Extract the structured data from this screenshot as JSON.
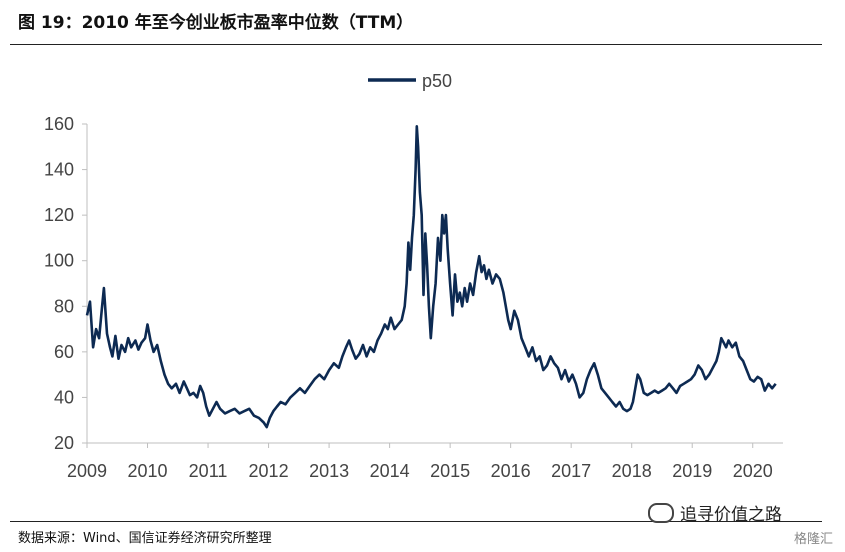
{
  "header": {
    "title": "图 19：2010 年至今创业板市盈率中位数（TTM）"
  },
  "footer": {
    "source": "数据来源：Wind、国信证券经济研究所整理",
    "watermark": "追寻价值之路",
    "logo": "格隆汇"
  },
  "colors": {
    "line": "#0d2a52",
    "axis": "#bfbfbf",
    "text": "#444444"
  },
  "chart_data": {
    "type": "line",
    "legend": {
      "entries": [
        "p50"
      ],
      "placement": "top-center"
    },
    "ylim": [
      20,
      160
    ],
    "yticks": [
      20,
      40,
      60,
      80,
      100,
      120,
      140,
      160
    ],
    "xlim": [
      2009.0,
      2020.5
    ],
    "xticks": [
      "2009",
      "2010",
      "2011",
      "2012",
      "2013",
      "2014",
      "2015",
      "2016",
      "2017",
      "2018",
      "2019",
      "2020"
    ],
    "series": [
      {
        "name": "p50",
        "points": [
          [
            2009.0,
            76
          ],
          [
            2009.05,
            82
          ],
          [
            2009.1,
            62
          ],
          [
            2009.15,
            70
          ],
          [
            2009.2,
            66
          ],
          [
            2009.25,
            80
          ],
          [
            2009.28,
            88
          ],
          [
            2009.33,
            68
          ],
          [
            2009.38,
            62
          ],
          [
            2009.42,
            58
          ],
          [
            2009.47,
            67
          ],
          [
            2009.52,
            57
          ],
          [
            2009.57,
            63
          ],
          [
            2009.63,
            60
          ],
          [
            2009.68,
            66
          ],
          [
            2009.73,
            62
          ],
          [
            2009.8,
            65
          ],
          [
            2009.85,
            61
          ],
          [
            2009.9,
            64
          ],
          [
            2009.96,
            66
          ],
          [
            2010.0,
            72
          ],
          [
            2010.05,
            65
          ],
          [
            2010.1,
            60
          ],
          [
            2010.16,
            63
          ],
          [
            2010.22,
            56
          ],
          [
            2010.28,
            50
          ],
          [
            2010.34,
            46
          ],
          [
            2010.4,
            44
          ],
          [
            2010.47,
            46
          ],
          [
            2010.53,
            42
          ],
          [
            2010.6,
            47
          ],
          [
            2010.65,
            44
          ],
          [
            2010.7,
            41
          ],
          [
            2010.76,
            42
          ],
          [
            2010.82,
            40
          ],
          [
            2010.87,
            45
          ],
          [
            2010.92,
            42
          ],
          [
            2010.97,
            36
          ],
          [
            2011.02,
            32
          ],
          [
            2011.08,
            35
          ],
          [
            2011.14,
            38
          ],
          [
            2011.2,
            35
          ],
          [
            2011.28,
            33
          ],
          [
            2011.36,
            34
          ],
          [
            2011.44,
            35
          ],
          [
            2011.52,
            33
          ],
          [
            2011.6,
            34
          ],
          [
            2011.68,
            35
          ],
          [
            2011.76,
            32
          ],
          [
            2011.84,
            31
          ],
          [
            2011.92,
            29
          ],
          [
            2011.97,
            27
          ],
          [
            2012.02,
            31
          ],
          [
            2012.08,
            34
          ],
          [
            2012.14,
            36
          ],
          [
            2012.2,
            38
          ],
          [
            2012.28,
            37
          ],
          [
            2012.36,
            40
          ],
          [
            2012.44,
            42
          ],
          [
            2012.52,
            44
          ],
          [
            2012.6,
            42
          ],
          [
            2012.68,
            45
          ],
          [
            2012.76,
            48
          ],
          [
            2012.84,
            50
          ],
          [
            2012.92,
            48
          ],
          [
            2013.0,
            52
          ],
          [
            2013.08,
            55
          ],
          [
            2013.16,
            53
          ],
          [
            2013.22,
            58
          ],
          [
            2013.28,
            62
          ],
          [
            2013.33,
            65
          ],
          [
            2013.38,
            61
          ],
          [
            2013.44,
            57
          ],
          [
            2013.5,
            59
          ],
          [
            2013.56,
            63
          ],
          [
            2013.62,
            58
          ],
          [
            2013.68,
            62
          ],
          [
            2013.74,
            60
          ],
          [
            2013.8,
            65
          ],
          [
            2013.86,
            68
          ],
          [
            2013.92,
            72
          ],
          [
            2013.97,
            70
          ],
          [
            2014.02,
            75
          ],
          [
            2014.08,
            70
          ],
          [
            2014.14,
            72
          ],
          [
            2014.2,
            74
          ],
          [
            2014.25,
            80
          ],
          [
            2014.28,
            90
          ],
          [
            2014.31,
            108
          ],
          [
            2014.34,
            96
          ],
          [
            2014.37,
            110
          ],
          [
            2014.4,
            120
          ],
          [
            2014.43,
            140
          ],
          [
            2014.45,
            159
          ],
          [
            2014.47,
            150
          ],
          [
            2014.5,
            130
          ],
          [
            2014.53,
            120
          ],
          [
            2014.56,
            85
          ],
          [
            2014.59,
            112
          ],
          [
            2014.62,
            98
          ],
          [
            2014.65,
            80
          ],
          [
            2014.68,
            66
          ],
          [
            2014.72,
            80
          ],
          [
            2014.76,
            90
          ],
          [
            2014.8,
            110
          ],
          [
            2014.84,
            100
          ],
          [
            2014.87,
            120
          ],
          [
            2014.9,
            112
          ],
          [
            2014.93,
            120
          ],
          [
            2014.96,
            105
          ],
          [
            2015.0,
            90
          ],
          [
            2015.04,
            76
          ],
          [
            2015.08,
            94
          ],
          [
            2015.12,
            82
          ],
          [
            2015.16,
            86
          ],
          [
            2015.2,
            80
          ],
          [
            2015.24,
            88
          ],
          [
            2015.28,
            82
          ],
          [
            2015.33,
            90
          ],
          [
            2015.38,
            85
          ],
          [
            2015.43,
            95
          ],
          [
            2015.48,
            102
          ],
          [
            2015.52,
            95
          ],
          [
            2015.56,
            98
          ],
          [
            2015.6,
            92
          ],
          [
            2015.64,
            96
          ],
          [
            2015.7,
            90
          ],
          [
            2015.76,
            94
          ],
          [
            2015.82,
            92
          ],
          [
            2015.88,
            86
          ],
          [
            2015.92,
            80
          ],
          [
            2015.96,
            74
          ],
          [
            2016.0,
            70
          ],
          [
            2016.06,
            78
          ],
          [
            2016.12,
            74
          ],
          [
            2016.18,
            66
          ],
          [
            2016.24,
            62
          ],
          [
            2016.3,
            58
          ],
          [
            2016.36,
            62
          ],
          [
            2016.42,
            56
          ],
          [
            2016.48,
            58
          ],
          [
            2016.54,
            52
          ],
          [
            2016.6,
            54
          ],
          [
            2016.66,
            58
          ],
          [
            2016.72,
            55
          ],
          [
            2016.78,
            53
          ],
          [
            2016.84,
            48
          ],
          [
            2016.9,
            52
          ],
          [
            2016.96,
            47
          ],
          [
            2017.02,
            50
          ],
          [
            2017.08,
            46
          ],
          [
            2017.14,
            40
          ],
          [
            2017.2,
            42
          ],
          [
            2017.26,
            48
          ],
          [
            2017.32,
            52
          ],
          [
            2017.38,
            55
          ],
          [
            2017.44,
            50
          ],
          [
            2017.5,
            44
          ],
          [
            2017.56,
            42
          ],
          [
            2017.62,
            40
          ],
          [
            2017.68,
            38
          ],
          [
            2017.74,
            36
          ],
          [
            2017.8,
            38
          ],
          [
            2017.86,
            35
          ],
          [
            2017.92,
            34
          ],
          [
            2017.98,
            35
          ],
          [
            2018.02,
            38
          ],
          [
            2018.06,
            44
          ],
          [
            2018.1,
            50
          ],
          [
            2018.14,
            48
          ],
          [
            2018.2,
            42
          ],
          [
            2018.26,
            41
          ],
          [
            2018.32,
            42
          ],
          [
            2018.38,
            43
          ],
          [
            2018.44,
            42
          ],
          [
            2018.5,
            43
          ],
          [
            2018.56,
            44
          ],
          [
            2018.62,
            46
          ],
          [
            2018.68,
            44
          ],
          [
            2018.74,
            42
          ],
          [
            2018.8,
            45
          ],
          [
            2018.86,
            46
          ],
          [
            2018.92,
            47
          ],
          [
            2018.98,
            48
          ],
          [
            2019.04,
            50
          ],
          [
            2019.1,
            54
          ],
          [
            2019.16,
            52
          ],
          [
            2019.22,
            48
          ],
          [
            2019.28,
            50
          ],
          [
            2019.34,
            53
          ],
          [
            2019.4,
            56
          ],
          [
            2019.44,
            60
          ],
          [
            2019.48,
            66
          ],
          [
            2019.52,
            64
          ],
          [
            2019.56,
            62
          ],
          [
            2019.6,
            65
          ],
          [
            2019.66,
            62
          ],
          [
            2019.72,
            64
          ],
          [
            2019.78,
            58
          ],
          [
            2019.84,
            56
          ],
          [
            2019.9,
            52
          ],
          [
            2019.96,
            48
          ],
          [
            2020.02,
            47
          ],
          [
            2020.08,
            49
          ],
          [
            2020.14,
            48
          ],
          [
            2020.2,
            43
          ],
          [
            2020.26,
            46
          ],
          [
            2020.32,
            44
          ],
          [
            2020.38,
            46
          ]
        ]
      }
    ]
  }
}
